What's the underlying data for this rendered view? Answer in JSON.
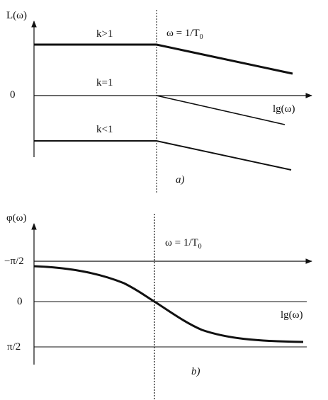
{
  "top": {
    "y_axis_label": "L(ω)",
    "x_axis_label": "lg(ω)",
    "origin_label": "0",
    "corner_label": "ω = 1/T",
    "corner_subscript": "0",
    "curve_labels": [
      "k>1",
      "k=1",
      "k<1"
    ],
    "panel_caption": "a)"
  },
  "bottom": {
    "y_axis_label": "φ(ω)",
    "x_axis_label": "lg(ω)",
    "corner_label": "ω = 1/T",
    "corner_subscript": "0",
    "tick_labels": [
      "−π/2",
      "0",
      "π/2"
    ],
    "panel_caption": "b)"
  }
}
